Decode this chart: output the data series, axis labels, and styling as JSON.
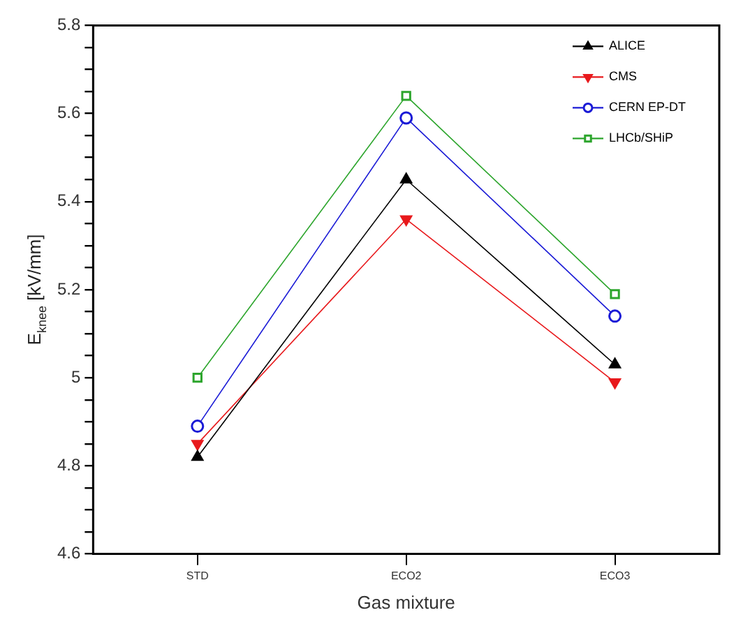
{
  "chart_data": {
    "type": "line",
    "xlabel": "Gas mixture",
    "ylabel": "E$_{knee}$ [kV/mm]",
    "categories": [
      "STD",
      "ECO2",
      "ECO3"
    ],
    "series": [
      {
        "name": "ALICE",
        "color": "#000000",
        "marker": "triangle",
        "values": [
          4.82,
          5.45,
          5.03
        ]
      },
      {
        "name": "CMS",
        "color": "#e8191c",
        "marker": "triangle-down",
        "values": [
          4.85,
          5.36,
          4.99
        ]
      },
      {
        "name": "CERN EP-DT",
        "color": "#1a1ad6",
        "marker": "circle",
        "values": [
          4.89,
          5.59,
          5.14
        ]
      },
      {
        "name": "LHCb/SHiP",
        "color": "#2ca52c",
        "marker": "square",
        "values": [
          5.0,
          5.64,
          5.19
        ]
      }
    ],
    "ylim": [
      4.6,
      5.8
    ],
    "yticks": [
      4.6,
      {
        "value": 4.65,
        "label": null
      },
      {
        "value": 4.7,
        "label": null
      },
      {
        "value": 4.75,
        "label": null
      },
      4.8,
      {
        "value": 4.85,
        "label": null
      },
      {
        "value": 4.9,
        "label": null
      },
      {
        "value": 4.95,
        "label": null
      },
      5,
      {
        "value": 5.05,
        "label": null
      },
      {
        "value": 5.1,
        "label": null
      },
      {
        "value": 5.15,
        "label": null
      },
      5.2,
      {
        "value": 5.25,
        "label": null
      },
      {
        "value": 5.3,
        "label": null
      },
      {
        "value": 5.35,
        "label": null
      },
      5.4,
      {
        "value": 5.45,
        "label": null
      },
      {
        "value": 5.5,
        "label": null
      },
      {
        "value": 5.55,
        "label": null
      },
      5.6,
      {
        "value": 5.65,
        "label": null
      },
      {
        "value": 5.7,
        "label": null
      },
      {
        "value": 5.75,
        "label": null
      },
      5.8
    ],
    "grid": false,
    "legend": "top right",
    "line_style": "solid"
  }
}
